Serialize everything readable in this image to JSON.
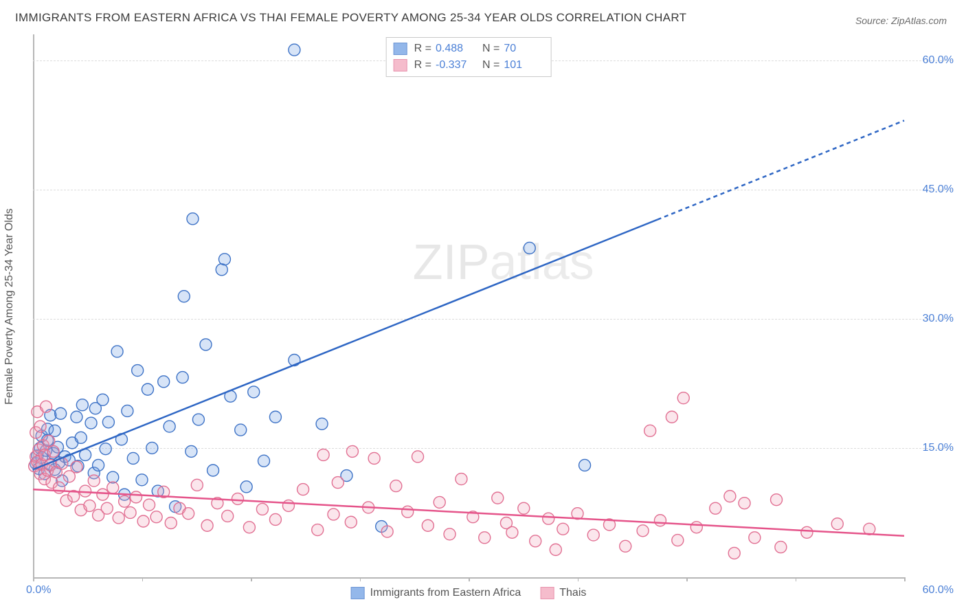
{
  "title": "IMMIGRANTS FROM EASTERN AFRICA VS THAI FEMALE POVERTY AMONG 25-34 YEAR OLDS CORRELATION CHART",
  "source_label": "Source: ZipAtlas.com",
  "ylabel": "Female Poverty Among 25-34 Year Olds",
  "watermark_a": "ZIP",
  "watermark_b": "atlas",
  "chart": {
    "type": "scatter",
    "background_color": "#ffffff",
    "grid_color": "#dcdcdc",
    "axis_color": "#b6b6b6",
    "tick_color": "#4a7fd6",
    "xlim": [
      0,
      60
    ],
    "ylim": [
      0,
      63
    ],
    "xticks": [
      0,
      15,
      30,
      45,
      60
    ],
    "xticks_minor": [
      7.5,
      22.5,
      37.5,
      52.5
    ],
    "yticks": [
      15,
      30,
      45,
      60
    ],
    "xtick_labels": {
      "left": "0.0%",
      "right": "60.0%"
    },
    "ytick_labels": [
      "15.0%",
      "30.0%",
      "45.0%",
      "60.0%"
    ],
    "marker_radius": 8.5,
    "marker_stroke_width": 1.4,
    "marker_fill_opacity": 0.28,
    "trend_line_width": 2.5,
    "trend_dash": "6,5"
  },
  "series": [
    {
      "name": "Immigrants from Eastern Africa",
      "color": "#6f9fe3",
      "stroke": "#3d72c6",
      "line_color": "#2e66c4",
      "R": "0.488",
      "N": "70",
      "trend": {
        "x1": 0,
        "y1": 12.5,
        "x2": 43,
        "y2": 41.5,
        "x_dash_to": 60,
        "y_dash_to": 53
      },
      "points": [
        [
          0.2,
          13.2
        ],
        [
          0.3,
          14.1
        ],
        [
          0.4,
          12.6
        ],
        [
          0.5,
          15.0
        ],
        [
          0.6,
          13.9
        ],
        [
          0.6,
          16.4
        ],
        [
          0.8,
          12.0
        ],
        [
          0.9,
          14.7
        ],
        [
          1.0,
          15.9
        ],
        [
          1.0,
          17.2
        ],
        [
          1.2,
          13.1
        ],
        [
          1.2,
          18.8
        ],
        [
          1.4,
          14.4
        ],
        [
          1.5,
          12.5
        ],
        [
          1.5,
          17.0
        ],
        [
          1.7,
          15.1
        ],
        [
          1.8,
          13.3
        ],
        [
          1.9,
          19.0
        ],
        [
          2.0,
          11.2
        ],
        [
          2.2,
          14.0
        ],
        [
          2.5,
          13.6
        ],
        [
          2.7,
          15.6
        ],
        [
          3.0,
          18.6
        ],
        [
          3.1,
          12.9
        ],
        [
          3.3,
          16.2
        ],
        [
          3.4,
          20.0
        ],
        [
          3.6,
          14.2
        ],
        [
          4.0,
          17.9
        ],
        [
          4.2,
          12.1
        ],
        [
          4.3,
          19.6
        ],
        [
          4.5,
          13.0
        ],
        [
          4.8,
          20.6
        ],
        [
          5.0,
          14.9
        ],
        [
          5.2,
          18.0
        ],
        [
          5.5,
          11.6
        ],
        [
          5.8,
          26.2
        ],
        [
          6.1,
          16.0
        ],
        [
          6.3,
          9.6
        ],
        [
          6.5,
          19.3
        ],
        [
          6.9,
          13.8
        ],
        [
          7.2,
          24.0
        ],
        [
          7.5,
          11.3
        ],
        [
          7.9,
          21.8
        ],
        [
          8.2,
          15.0
        ],
        [
          8.6,
          10.0
        ],
        [
          9.0,
          22.7
        ],
        [
          9.4,
          17.5
        ],
        [
          9.8,
          8.2
        ],
        [
          10.3,
          23.2
        ],
        [
          10.4,
          32.6
        ],
        [
          10.9,
          14.6
        ],
        [
          11.0,
          41.6
        ],
        [
          11.4,
          18.3
        ],
        [
          11.9,
          27.0
        ],
        [
          12.4,
          12.4
        ],
        [
          13.0,
          35.7
        ],
        [
          13.2,
          36.9
        ],
        [
          13.6,
          21.0
        ],
        [
          14.3,
          17.1
        ],
        [
          14.7,
          10.5
        ],
        [
          15.2,
          21.5
        ],
        [
          15.9,
          13.5
        ],
        [
          16.7,
          18.6
        ],
        [
          18.0,
          61.2
        ],
        [
          18.0,
          25.2
        ],
        [
          19.9,
          17.8
        ],
        [
          21.6,
          11.8
        ],
        [
          24.0,
          5.9
        ],
        [
          34.2,
          38.2
        ],
        [
          38.0,
          13.0
        ]
      ]
    },
    {
      "name": "Thais",
      "color": "#f2a6bb",
      "stroke": "#e16f92",
      "line_color": "#e5548a",
      "R": "-0.337",
      "N": "101",
      "trend": {
        "x1": 0,
        "y1": 10.2,
        "x2": 60,
        "y2": 4.8,
        "x_dash_to": 60,
        "y_dash_to": 4.8
      },
      "points": [
        [
          0.1,
          12.9
        ],
        [
          0.2,
          14.0
        ],
        [
          0.2,
          16.8
        ],
        [
          0.3,
          13.4
        ],
        [
          0.3,
          19.2
        ],
        [
          0.4,
          14.8
        ],
        [
          0.5,
          12.0
        ],
        [
          0.5,
          17.5
        ],
        [
          0.6,
          13.1
        ],
        [
          0.7,
          15.3
        ],
        [
          0.8,
          11.4
        ],
        [
          0.8,
          14.2
        ],
        [
          0.9,
          19.8
        ],
        [
          1.0,
          12.4
        ],
        [
          1.1,
          15.8
        ],
        [
          1.2,
          13.0
        ],
        [
          1.3,
          11.0
        ],
        [
          1.4,
          14.6
        ],
        [
          1.6,
          12.2
        ],
        [
          1.8,
          10.4
        ],
        [
          2.0,
          13.2
        ],
        [
          2.3,
          8.9
        ],
        [
          2.5,
          11.7
        ],
        [
          2.8,
          9.4
        ],
        [
          3.0,
          12.8
        ],
        [
          3.3,
          7.8
        ],
        [
          3.6,
          10.0
        ],
        [
          3.9,
          8.3
        ],
        [
          4.2,
          11.2
        ],
        [
          4.5,
          7.2
        ],
        [
          4.8,
          9.6
        ],
        [
          5.1,
          8.0
        ],
        [
          5.5,
          10.4
        ],
        [
          5.9,
          6.9
        ],
        [
          6.3,
          8.8
        ],
        [
          6.7,
          7.5
        ],
        [
          7.1,
          9.3
        ],
        [
          7.6,
          6.5
        ],
        [
          8.0,
          8.4
        ],
        [
          8.5,
          7.0
        ],
        [
          9.0,
          9.9
        ],
        [
          9.5,
          6.3
        ],
        [
          10.1,
          8.0
        ],
        [
          10.7,
          7.4
        ],
        [
          11.3,
          10.7
        ],
        [
          12.0,
          6.0
        ],
        [
          12.7,
          8.6
        ],
        [
          13.4,
          7.1
        ],
        [
          14.1,
          9.1
        ],
        [
          14.9,
          5.8
        ],
        [
          15.8,
          7.9
        ],
        [
          16.7,
          6.7
        ],
        [
          17.6,
          8.3
        ],
        [
          18.6,
          10.2
        ],
        [
          19.6,
          5.5
        ],
        [
          20.0,
          14.2
        ],
        [
          20.7,
          7.3
        ],
        [
          21.0,
          11.0
        ],
        [
          21.9,
          6.4
        ],
        [
          22.0,
          14.6
        ],
        [
          23.1,
          8.1
        ],
        [
          23.5,
          13.8
        ],
        [
          24.4,
          5.3
        ],
        [
          25.0,
          10.6
        ],
        [
          25.8,
          7.6
        ],
        [
          26.5,
          14.0
        ],
        [
          27.2,
          6.0
        ],
        [
          28.0,
          8.7
        ],
        [
          28.7,
          5.0
        ],
        [
          29.5,
          11.4
        ],
        [
          30.3,
          7.0
        ],
        [
          31.1,
          4.6
        ],
        [
          32.0,
          9.2
        ],
        [
          32.6,
          6.3
        ],
        [
          33.0,
          5.2
        ],
        [
          33.8,
          8.0
        ],
        [
          34.6,
          4.2
        ],
        [
          35.5,
          6.8
        ],
        [
          36.0,
          3.2
        ],
        [
          36.5,
          5.6
        ],
        [
          37.5,
          7.4
        ],
        [
          38.6,
          4.9
        ],
        [
          39.7,
          6.1
        ],
        [
          40.8,
          3.6
        ],
        [
          42.0,
          5.4
        ],
        [
          42.5,
          17.0
        ],
        [
          43.2,
          6.6
        ],
        [
          44.0,
          18.6
        ],
        [
          44.4,
          4.3
        ],
        [
          44.8,
          20.8
        ],
        [
          45.7,
          5.8
        ],
        [
          47.0,
          8.0
        ],
        [
          48.0,
          9.4
        ],
        [
          48.3,
          2.8
        ],
        [
          49.0,
          8.6
        ],
        [
          49.7,
          4.6
        ],
        [
          51.2,
          9.0
        ],
        [
          51.5,
          3.5
        ],
        [
          53.3,
          5.2
        ],
        [
          55.4,
          6.2
        ],
        [
          57.6,
          5.6
        ]
      ]
    }
  ],
  "legend_stat_labels": {
    "R": "R  =",
    "N": "N  ="
  }
}
